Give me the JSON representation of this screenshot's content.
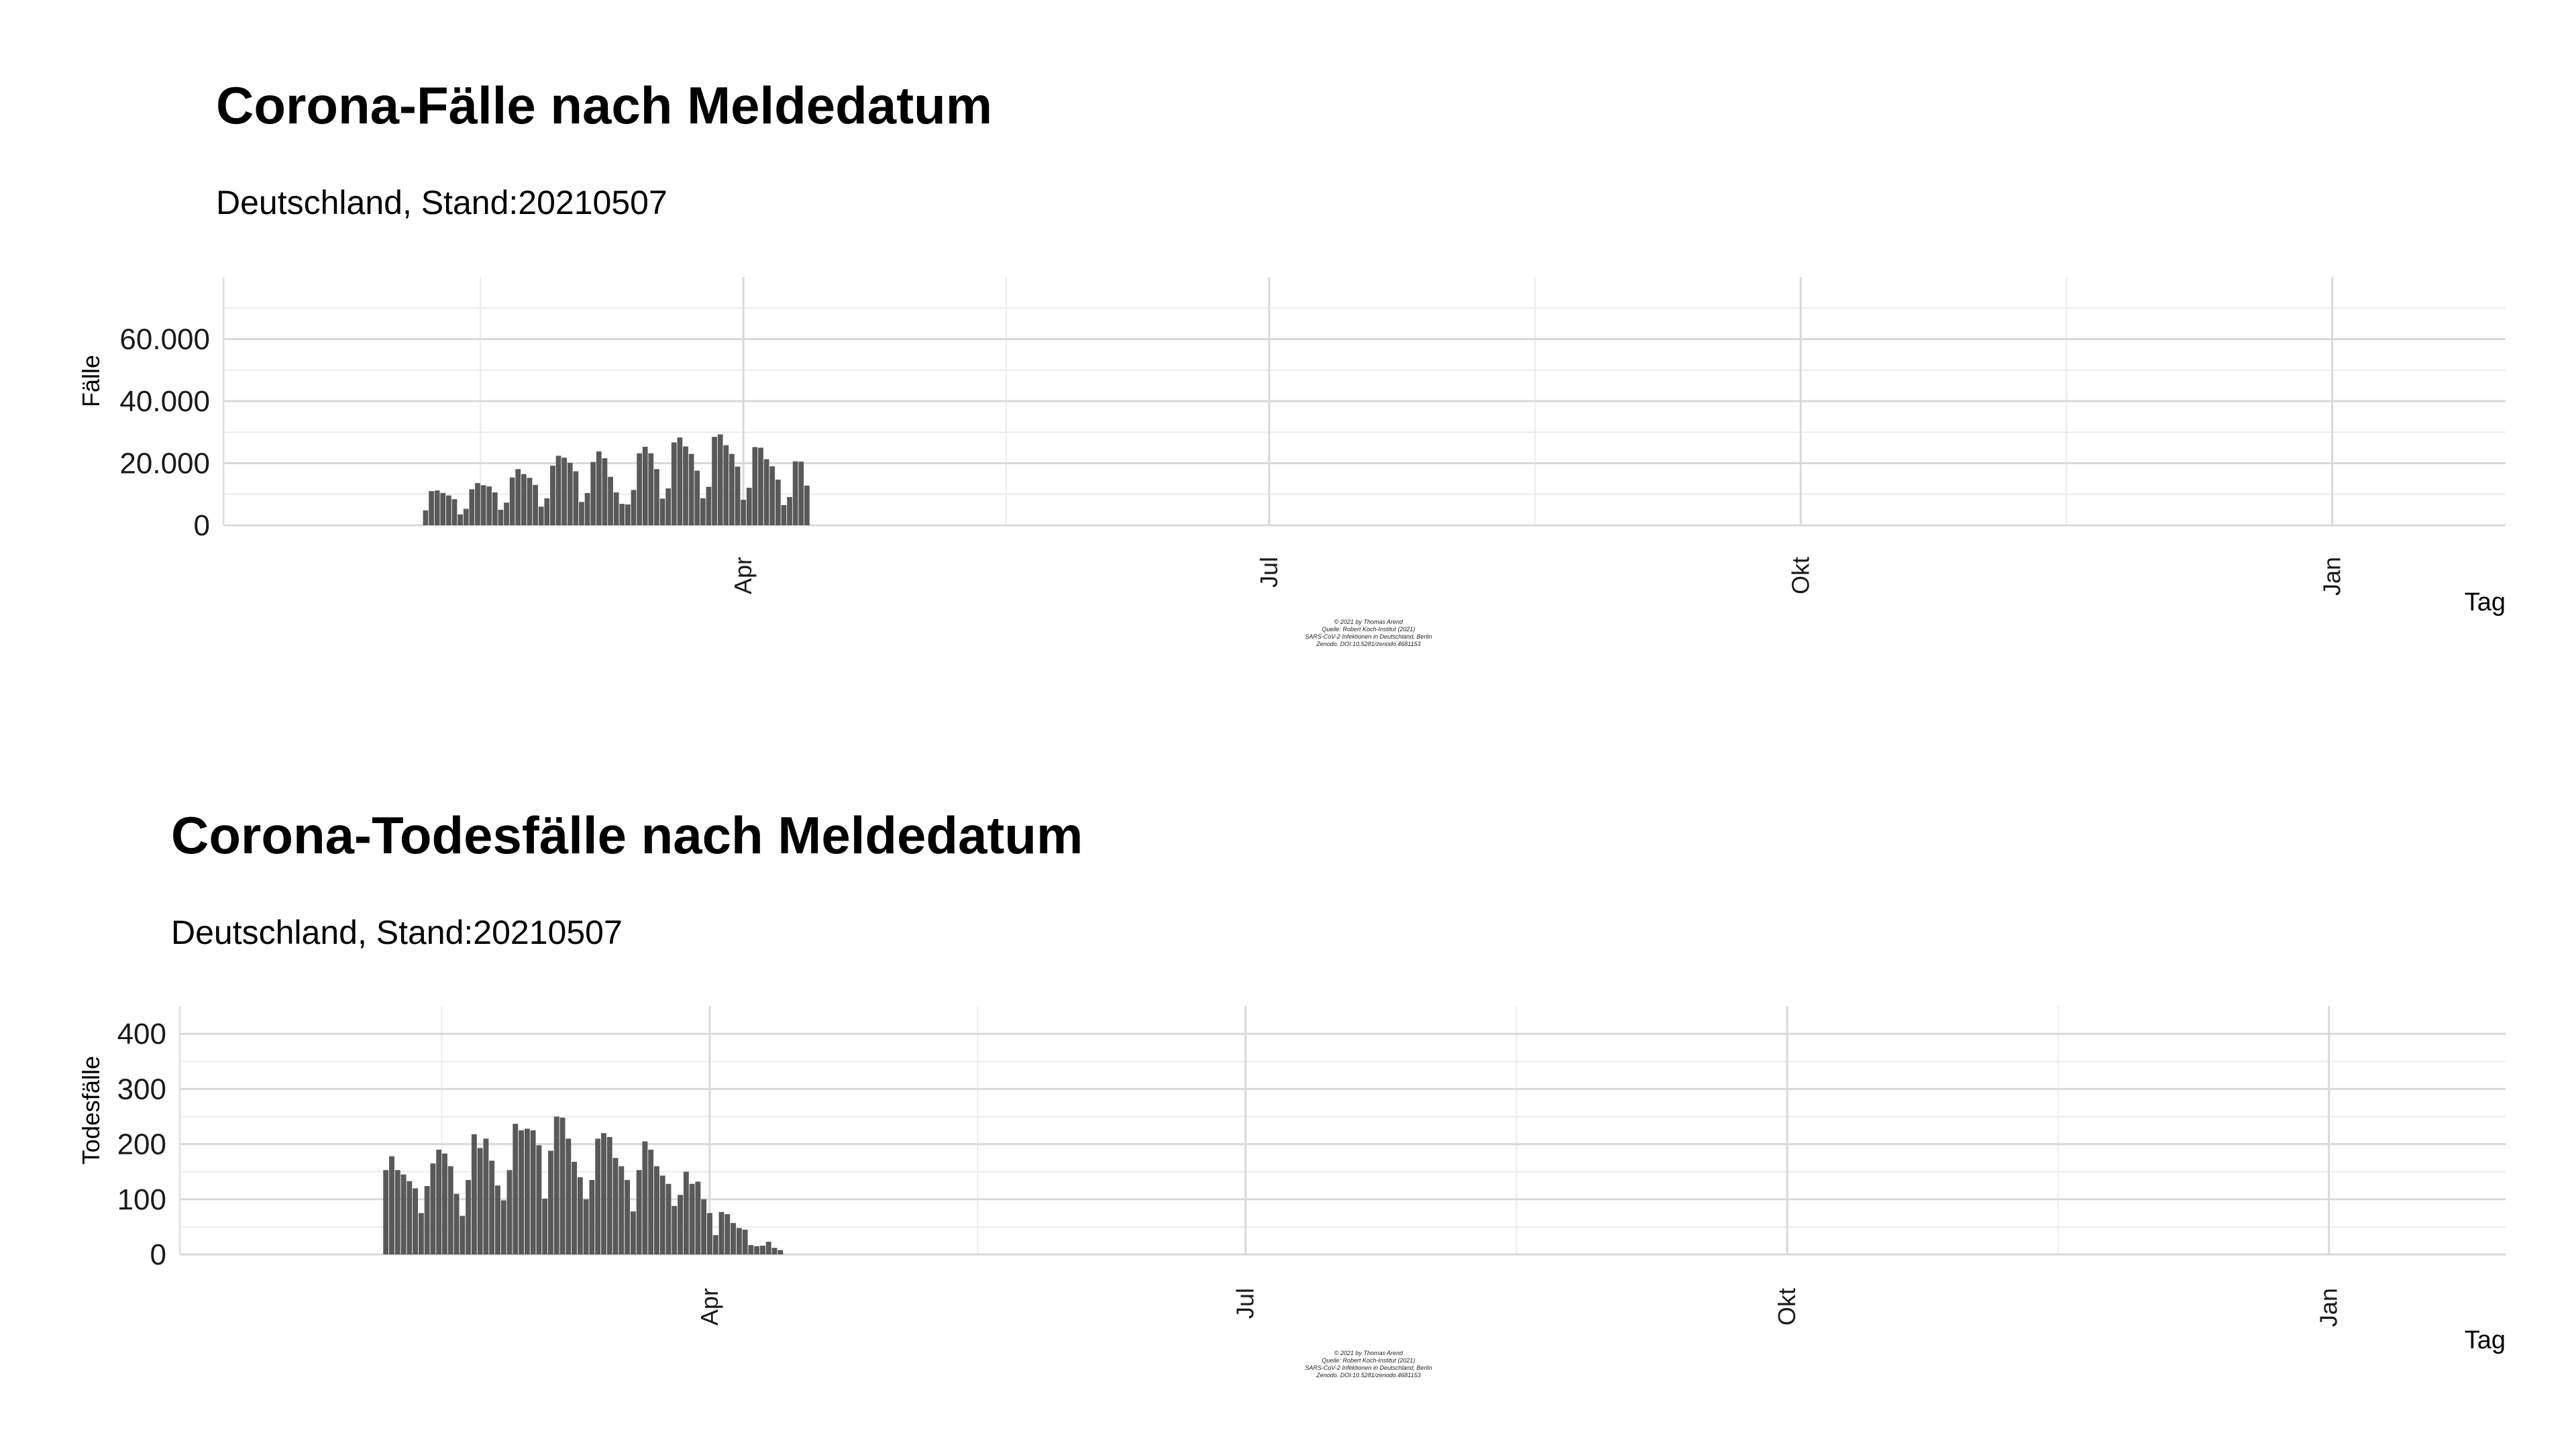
{
  "chart_data": [
    {
      "type": "bar",
      "title": "Corona-Fälle nach Meldedatum",
      "subtitle": "Deutschland, Stand:20210507",
      "xlabel": "Tag",
      "ylabel": "Fälle",
      "x_start": "2021-02-05",
      "xlim": [
        "2021-01-01",
        "2022-01-31"
      ],
      "ylim": [
        0,
        80000
      ],
      "yticks": [
        0,
        20000,
        40000,
        60000
      ],
      "ytick_labels": [
        "0",
        "20.000",
        "40.000",
        "60.000"
      ],
      "xticks": [
        "2021-04-01",
        "2021-07-01",
        "2021-10-01",
        "2022-01-01"
      ],
      "xtick_labels": [
        "Apr",
        "Jul",
        "Okt",
        "Jan"
      ],
      "grid": true,
      "bar_color": "#595959",
      "caption": [
        "© 2021 by Thomas Arend",
        "Quelle: Robert Koch-Institut (2021)",
        "SARS-CoV-2 Infektionen in Deutschland, Berlin",
        "Zenodo. DOI:10.5281/zenodo.4681153"
      ],
      "values": [
        4800,
        11000,
        11200,
        10400,
        9600,
        8400,
        3500,
        5300,
        11600,
        13600,
        12900,
        12500,
        10600,
        5000,
        7300,
        15400,
        18100,
        16500,
        15300,
        13000,
        6000,
        8700,
        19200,
        22400,
        21800,
        20100,
        17400,
        7500,
        10400,
        20400,
        23800,
        21600,
        15600,
        10600,
        6900,
        6700,
        11400,
        23200,
        25300,
        23200,
        18100,
        8600,
        11900,
        26700,
        28300,
        25400,
        23000,
        17600,
        8700,
        12400,
        28500,
        29300,
        25800,
        23000,
        18900,
        8200,
        12100,
        25200,
        25000,
        21300,
        19000,
        14700,
        6500,
        9100,
        20600,
        20500,
        12800
      ]
    },
    {
      "type": "bar",
      "title": "Corona-Todesfälle nach Meldedatum",
      "subtitle": "Deutschland, Stand:20210507",
      "xlabel": "Tag",
      "ylabel": "Todesfälle",
      "x_start": "2021-02-05",
      "xlim": [
        "2021-01-01",
        "2022-01-31"
      ],
      "ylim": [
        0,
        450
      ],
      "yticks": [
        0,
        100,
        200,
        300,
        400
      ],
      "ytick_labels": [
        "0",
        "100",
        "200",
        "300",
        "400"
      ],
      "xticks": [
        "2021-04-01",
        "2021-07-01",
        "2021-10-01",
        "2022-01-01"
      ],
      "xtick_labels": [
        "Apr",
        "Jul",
        "Okt",
        "Jan"
      ],
      "grid": true,
      "bar_color": "#595959",
      "caption": [
        "© 2021 by Thomas Arend",
        "Quelle: Robert Koch-Institut (2021)",
        "SARS-CoV-2 Infektionen in Deutschland, Berlin",
        "Zenodo. DOI:10.5281/zenodo.4681153"
      ],
      "values": [
        153,
        178,
        153,
        145,
        133,
        120,
        75,
        124,
        165,
        190,
        183,
        160,
        110,
        70,
        135,
        218,
        193,
        210,
        170,
        125,
        98,
        153,
        237,
        225,
        228,
        225,
        198,
        101,
        188,
        250,
        248,
        210,
        168,
        140,
        100,
        135,
        210,
        220,
        213,
        175,
        160,
        135,
        78,
        153,
        205,
        190,
        160,
        143,
        128,
        88,
        108,
        150,
        128,
        132,
        100,
        75,
        35,
        77,
        73,
        57,
        48,
        45,
        17,
        15,
        16,
        23,
        12,
        8
      ]
    }
  ]
}
